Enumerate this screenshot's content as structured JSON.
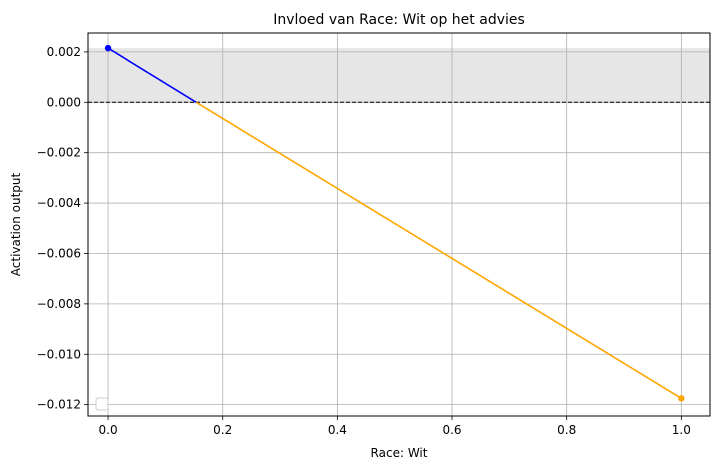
{
  "chart_data": {
    "type": "line",
    "title": "Invloed van Race: Wit op het advies",
    "xlabel": "Race: Wit",
    "ylabel": "Activation output",
    "xlim": [
      -0.035,
      1.05
    ],
    "ylim": [
      -0.01245,
      0.00275
    ],
    "xticks": [
      0.0,
      0.2,
      0.4,
      0.6,
      0.8,
      1.0
    ],
    "xtick_labels": [
      "0.0",
      "0.2",
      "0.4",
      "0.6",
      "0.8",
      "1.0"
    ],
    "yticks": [
      0.002,
      0.0,
      -0.002,
      -0.004,
      -0.006,
      -0.008,
      -0.01,
      -0.012
    ],
    "ytick_labels": [
      "0.002",
      "0.000",
      "−0.002",
      "−0.004",
      "−0.006",
      "−0.008",
      "−0.010",
      "−0.012"
    ],
    "grid": true,
    "legend": "bottom-left (empty)",
    "shaded_band": {
      "y_from": 0.0,
      "y_to": 0.00215,
      "color": "#e6e6e6"
    },
    "reference_line": {
      "y": 0.0,
      "style": "dashed",
      "color": "#000000"
    },
    "series": [
      {
        "color": "#0000ff",
        "x": [
          0.0,
          0.1538
        ],
        "y": [
          0.00215,
          0.0
        ]
      },
      {
        "color": "#ffa500",
        "x": [
          0.1538,
          1.0
        ],
        "y": [
          0.0,
          -0.01175
        ]
      }
    ],
    "markers": [
      {
        "x": 0.0,
        "y": 0.00215,
        "color": "#0000ff"
      },
      {
        "x": 1.0,
        "y": -0.01175,
        "color": "#ffa500"
      }
    ]
  }
}
